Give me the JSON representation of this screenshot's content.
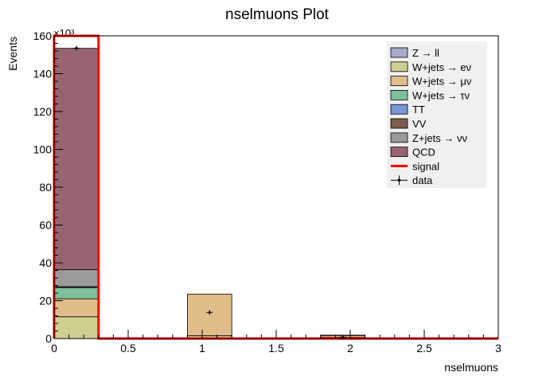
{
  "chart_data": {
    "type": "bar",
    "title": "nselmuons Plot",
    "xlabel": "nselmuons",
    "ylabel": "Events",
    "y_multiplier_label": "×10³",
    "x_range": [
      0,
      3
    ],
    "y_range": [
      0,
      160000
    ],
    "x_ticks": [
      "0",
      "0.5",
      "1",
      "1.5",
      "2",
      "2.5",
      "3"
    ],
    "y_ticks": [
      "0",
      "20",
      "40",
      "60",
      "80",
      "100",
      "120",
      "140",
      "160"
    ],
    "bin_edges": [
      0,
      0.3,
      0.6,
      0.9,
      1.2,
      1.5,
      1.8,
      2.1,
      2.4,
      2.7,
      3.0
    ],
    "stack": [
      {
        "name": "Z → ll",
        "color": "#a9a9c8",
        "values": [
          0,
          0,
          0,
          0,
          0,
          0,
          0,
          0,
          0,
          0
        ]
      },
      {
        "name": "W+jets → eν",
        "color": "#cfcf8f",
        "values": [
          11500,
          0,
          0,
          1500,
          0,
          0,
          600,
          0,
          0,
          0
        ]
      },
      {
        "name": "W+jets → μν",
        "color": "#e1bd8a",
        "values": [
          9500,
          0,
          0,
          22000,
          0,
          0,
          1000,
          0,
          0,
          0
        ]
      },
      {
        "name": "W+jets → τν",
        "color": "#7fbf9a",
        "values": [
          6000,
          0,
          0,
          0,
          0,
          0,
          200,
          0,
          0,
          0
        ]
      },
      {
        "name": "TT",
        "color": "#7a97d6",
        "values": [
          200,
          0,
          0,
          0,
          0,
          0,
          0,
          0,
          0,
          0
        ]
      },
      {
        "name": "VV",
        "color": "#7d5c4e",
        "values": [
          200,
          0,
          0,
          0,
          0,
          0,
          0,
          0,
          0,
          0
        ]
      },
      {
        "name": "Z+jets → νν",
        "color": "#9a9a9a",
        "values": [
          9000,
          0,
          0,
          0,
          0,
          0,
          0,
          0,
          0,
          0
        ]
      },
      {
        "name": "QCD",
        "color": "#976470",
        "values": [
          117000,
          0,
          0,
          0,
          0,
          0,
          0,
          0,
          0,
          0
        ]
      }
    ],
    "signal": {
      "name": "signal",
      "color": "#ff0000",
      "values": [
        160000,
        0,
        0,
        0,
        0,
        0,
        0,
        0,
        0,
        0
      ]
    },
    "data_points": {
      "name": "data",
      "x": [
        0.15,
        1.05,
        1.95
      ],
      "y": [
        153500,
        13800,
        700
      ]
    },
    "legend_position": "top-right",
    "grid": false
  }
}
